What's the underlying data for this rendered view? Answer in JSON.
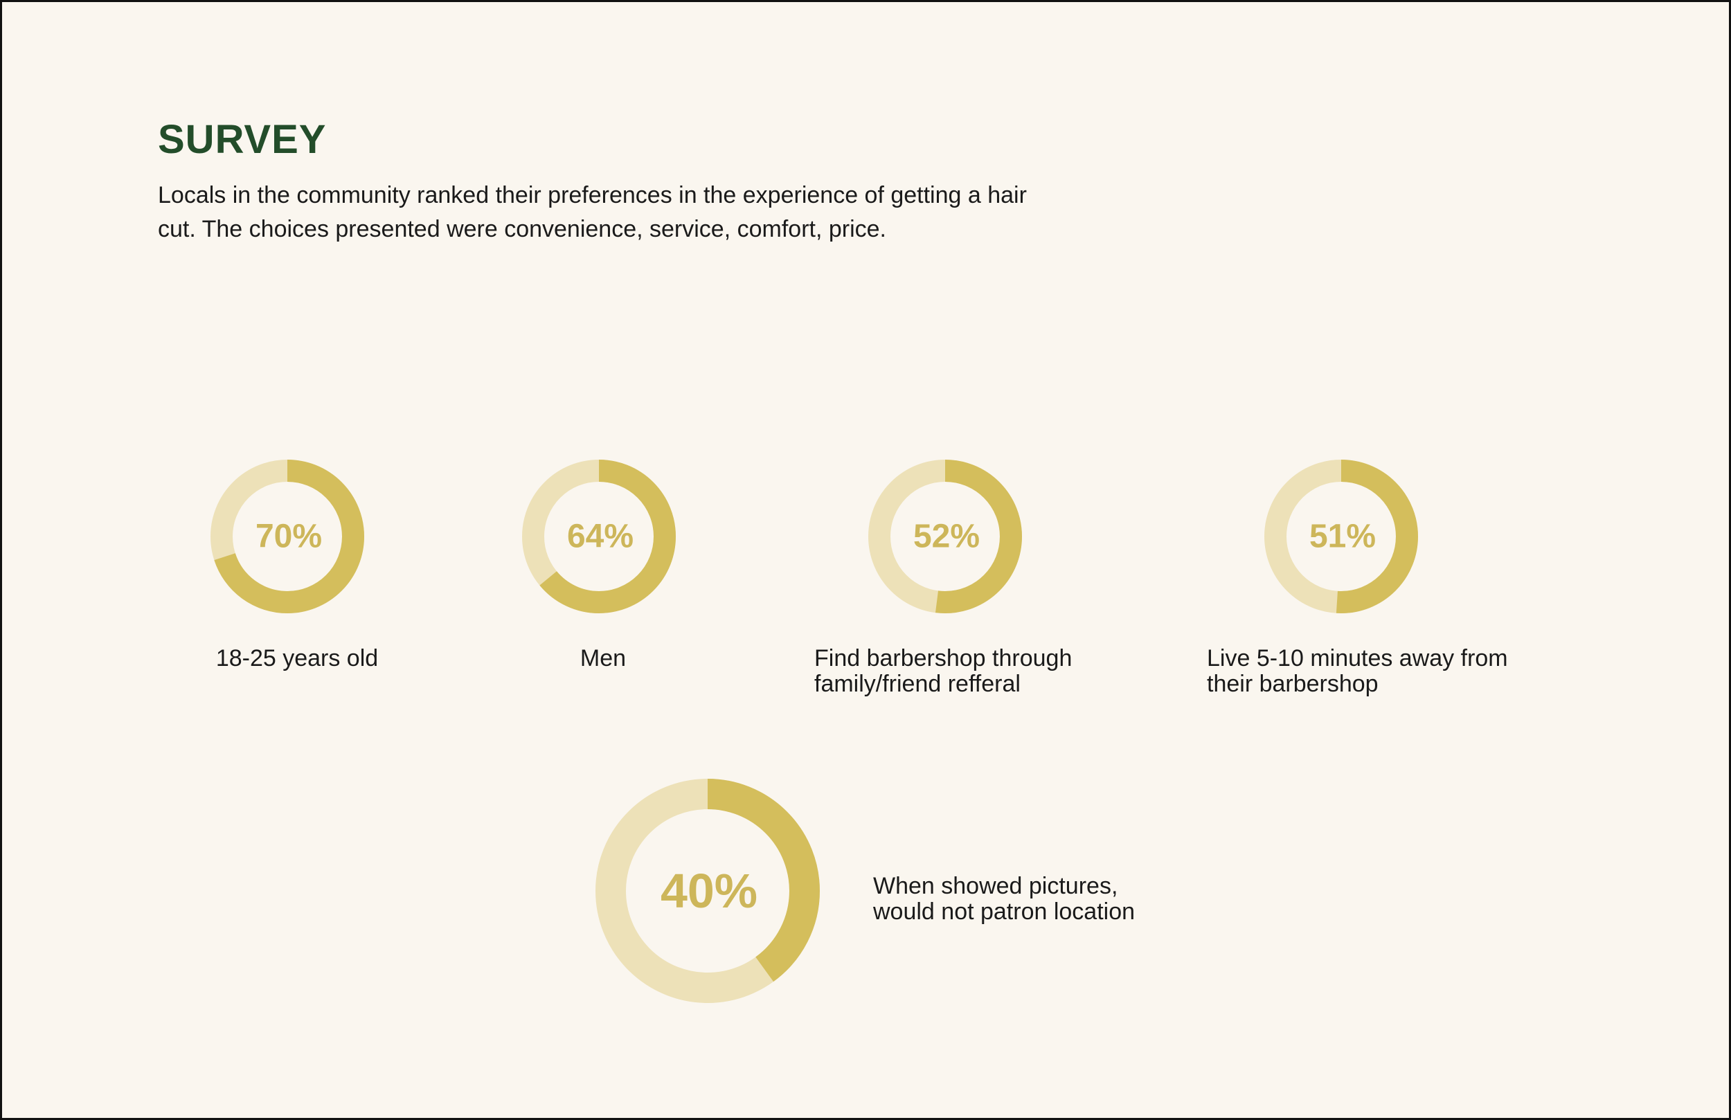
{
  "header": {
    "title": "SURVEY",
    "description": "Locals in the community ranked their preferences in the experience of getting a hair cut. The choices presented were convenience, service, comfort, price."
  },
  "colors": {
    "background": "#faf6ef",
    "title": "#234d2a",
    "ring_filled": "#d4be5c",
    "ring_empty": "#ede1b8",
    "percent_text": "#cdb65a"
  },
  "chart_data": [
    {
      "type": "pie",
      "style": "donut",
      "value": 70,
      "display": "70%",
      "label": "18-25 years old"
    },
    {
      "type": "pie",
      "style": "donut",
      "value": 64,
      "display": "64%",
      "label": "Men"
    },
    {
      "type": "pie",
      "style": "donut",
      "value": 52,
      "display": "52%",
      "label": "Find barbershop through\nfamily/friend refferal"
    },
    {
      "type": "pie",
      "style": "donut",
      "value": 51,
      "display": "51%",
      "label": "Live 5-10 minutes away from\ntheir barbershop"
    },
    {
      "type": "pie",
      "style": "donut",
      "value": 40,
      "display": "40%",
      "label": "When showed pictures,\nwould not patron location"
    }
  ]
}
